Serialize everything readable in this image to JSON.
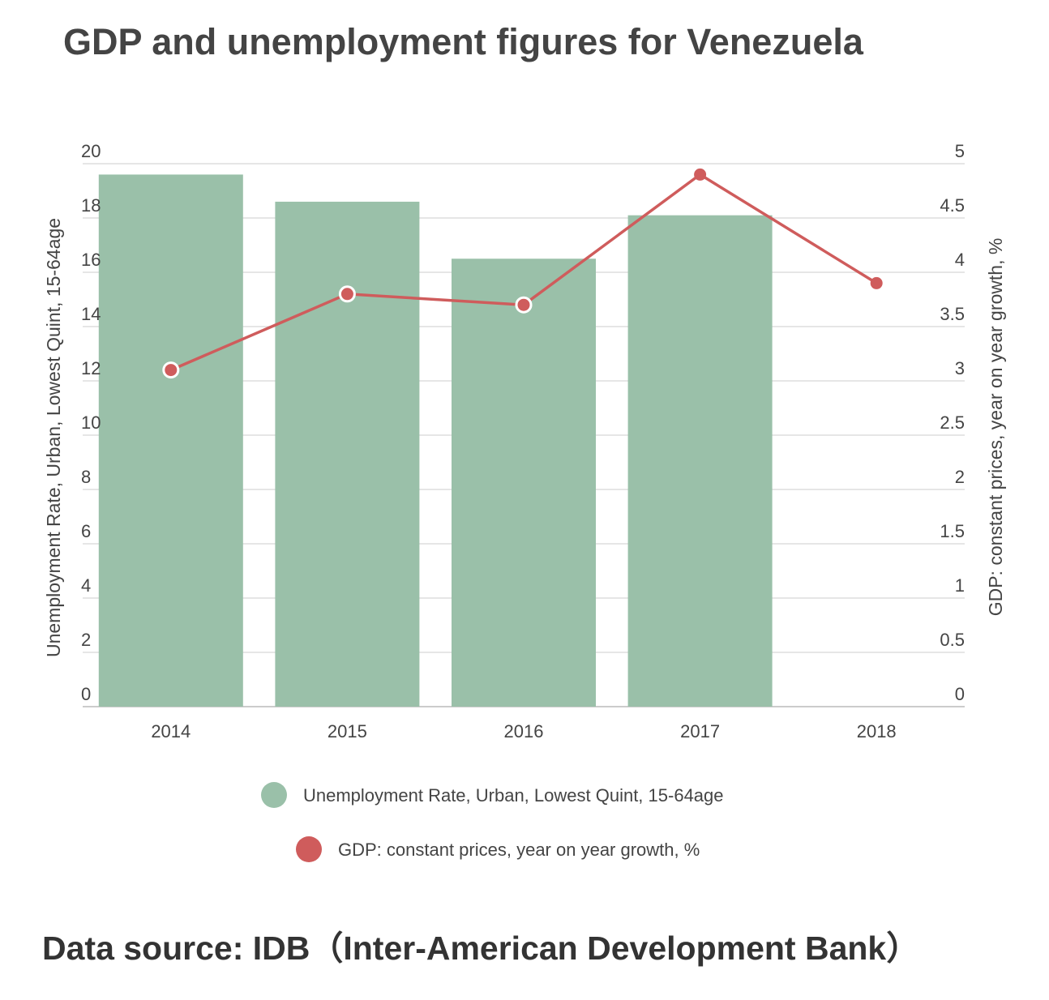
{
  "title": "GDP and unemployment figures for Venezuela",
  "source": "Data source: IDB（Inter-American Development Bank）",
  "chart_data": {
    "type": "bar",
    "categories": [
      "2014",
      "2015",
      "2016",
      "2017",
      "2018"
    ],
    "y_left": {
      "label": "Unemployment Rate, Urban, Lowest Quint, 15-64age",
      "lim": [
        0,
        20
      ],
      "ticks": [
        "0",
        "2",
        "4",
        "6",
        "8",
        "10",
        "12",
        "14",
        "16",
        "18",
        "20"
      ]
    },
    "y_right": {
      "label": "GDP: constant prices, year on year growth, %",
      "lim": [
        0,
        5
      ],
      "ticks": [
        "0",
        "0.5",
        "1",
        "1.5",
        "2",
        "2.5",
        "3",
        "3.5",
        "4",
        "4.5",
        "5"
      ]
    },
    "series": [
      {
        "name": "Unemployment Rate, Urban, Lowest Quint, 15-64age",
        "type": "bar",
        "axis": "left",
        "color": "#9ac0a9",
        "values": [
          19.6,
          18.6,
          16.5,
          18.1,
          null
        ]
      },
      {
        "name": "GDP: constant prices, year on year growth, %",
        "type": "line",
        "axis": "right",
        "color": "#cf5c5c",
        "values": [
          3.1,
          3.8,
          3.7,
          4.9,
          3.9
        ]
      }
    ],
    "grid": true,
    "legend_position": "bottom"
  }
}
